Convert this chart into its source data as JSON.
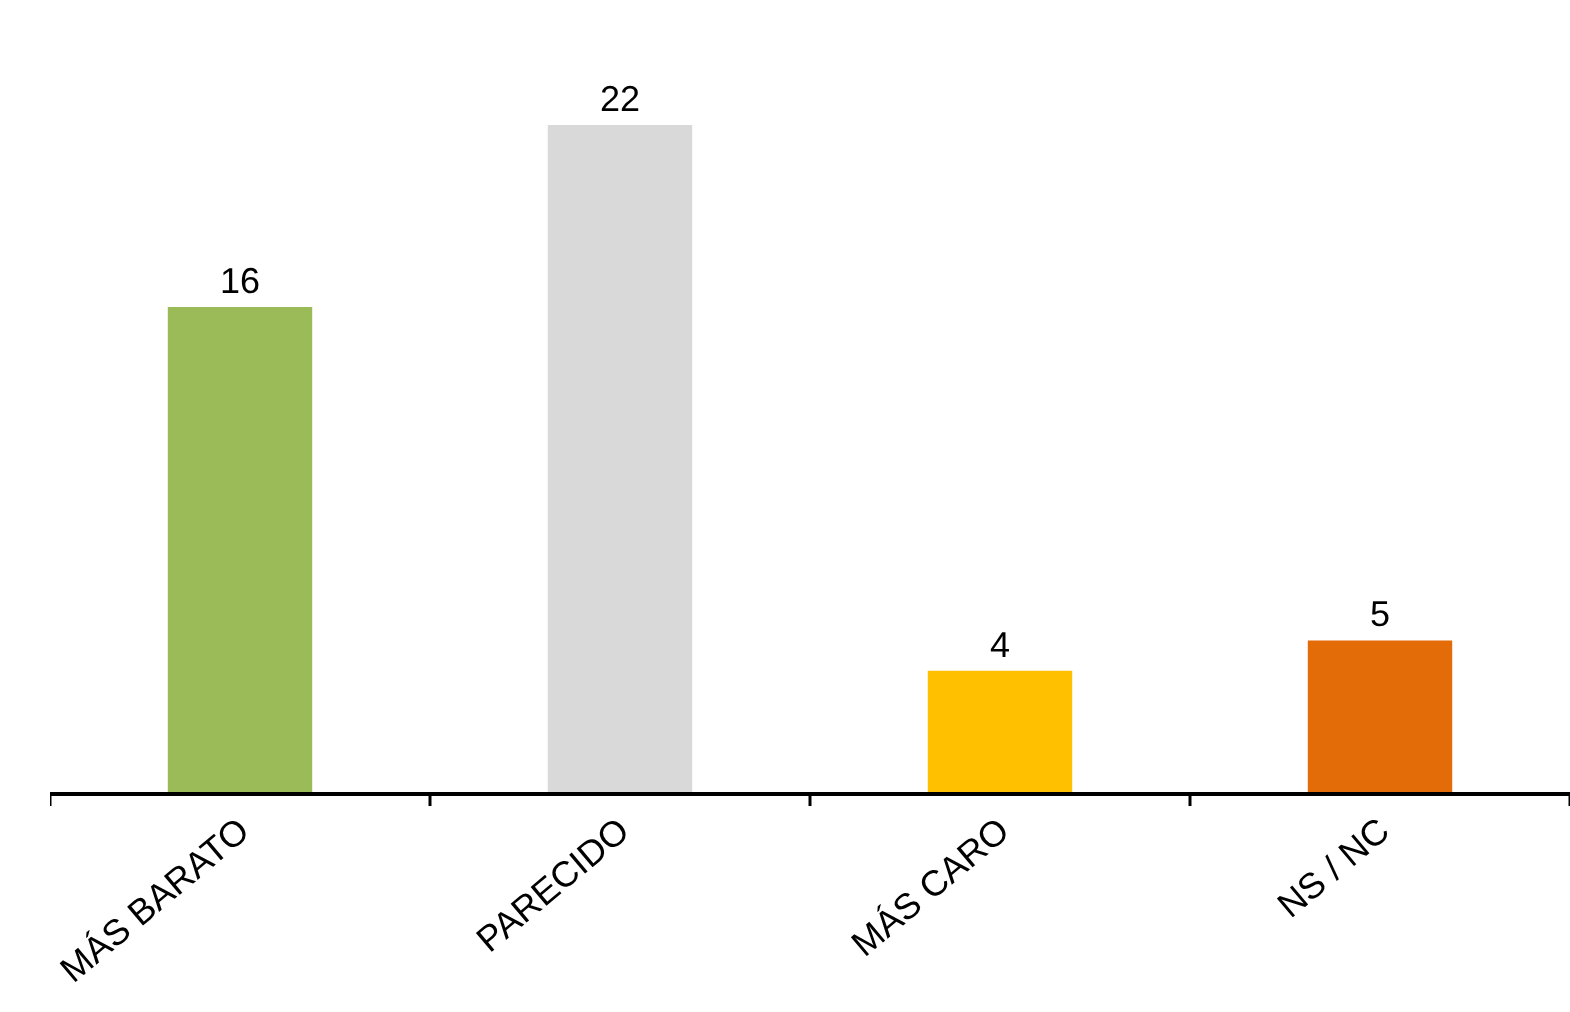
{
  "chart_data": {
    "type": "bar",
    "categories": [
      "MÁS BARATO",
      "PARECIDO",
      "MÁS CARO",
      "NS / NC"
    ],
    "values": [
      16,
      22,
      4,
      5
    ],
    "colors": [
      "#9bbb59",
      "#d9d9d9",
      "#ffc000",
      "#e36c09"
    ],
    "data_labels": true
  }
}
